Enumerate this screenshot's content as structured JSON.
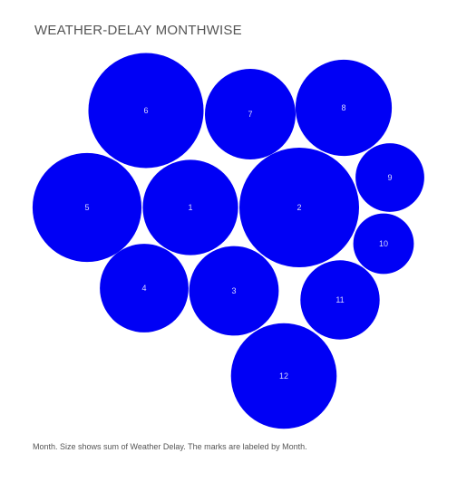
{
  "title": "WEATHER-DELAY MONTHWISE",
  "caption": "Month.  Size shows sum of Weather Delay.  The marks are labeled by Month.",
  "colors": {
    "bubble": "#0000f5",
    "bubble_label": "#d8d8ff",
    "title": "#555555"
  },
  "chart_data": {
    "type": "bubble",
    "title": "WEATHER-DELAY MONTHWISE",
    "size_measure": "Weather Delay",
    "label_field": "Month",
    "legend": "none",
    "grid": false,
    "categories": [
      "1",
      "2",
      "3",
      "4",
      "5",
      "6",
      "7",
      "8",
      "9",
      "10",
      "11",
      "12"
    ],
    "values": [
      0.52,
      0.82,
      0.46,
      0.45,
      0.68,
      0.76,
      0.47,
      0.53,
      0.27,
      0.21,
      0.36,
      0.64
    ]
  }
}
